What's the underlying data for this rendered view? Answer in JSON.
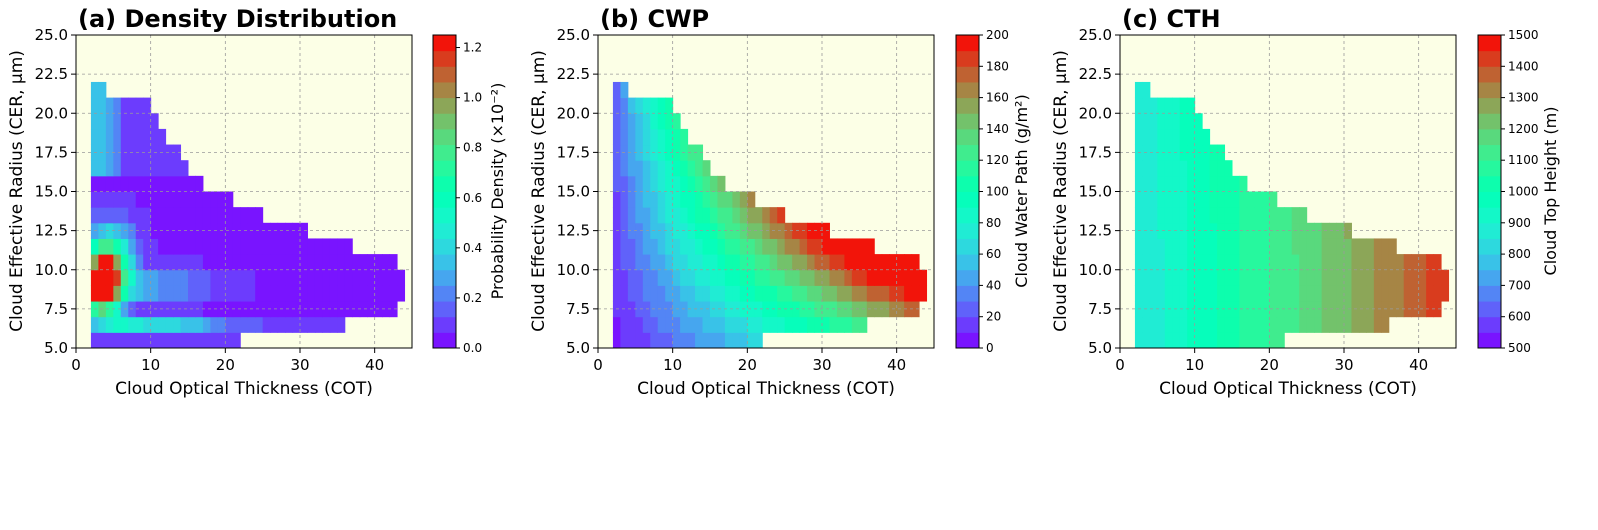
{
  "chart_data": [
    {
      "type": "heatmap",
      "title": "(a) Density Distribution",
      "xlabel": "Cloud Optical Thickness (COT)",
      "ylabel": "Cloud Effective Radius (CER, μm)",
      "xlim": [
        0,
        45
      ],
      "ylim": [
        5,
        25
      ],
      "xticks": [
        0,
        10,
        20,
        30,
        40
      ],
      "yticks": [
        "5.0",
        "7.5",
        "10.0",
        "12.5",
        "15.0",
        "17.5",
        "20.0",
        "22.5",
        "25.0"
      ],
      "colorbar": {
        "label": "Probability Density (×10⁻²)",
        "range": [
          0,
          1.25
        ],
        "levels": 20,
        "ticks": [
          "0.0",
          "0.2",
          "0.4",
          "0.6",
          "0.8",
          "1.0",
          "1.2"
        ]
      },
      "grid": true,
      "background": "#fcffe6",
      "x_bin": 1,
      "y_bin": 1,
      "kind": "density"
    },
    {
      "type": "heatmap",
      "title": "(b) CWP",
      "xlabel": "Cloud Optical Thickness (COT)",
      "ylabel": "Cloud Effective Radius (CER, μm)",
      "xlim": [
        0,
        45
      ],
      "ylim": [
        5,
        25
      ],
      "xticks": [
        0,
        10,
        20,
        30,
        40
      ],
      "yticks": [
        "5.0",
        "7.5",
        "10.0",
        "12.5",
        "15.0",
        "17.5",
        "20.0",
        "22.5",
        "25.0"
      ],
      "colorbar": {
        "label": "Cloud Water Path (g/m²)",
        "range": [
          0,
          200
        ],
        "levels": 20,
        "ticks": [
          "0",
          "20",
          "40",
          "60",
          "80",
          "100",
          "120",
          "140",
          "160",
          "180",
          "200"
        ]
      },
      "grid": true,
      "background": "#fcffe6",
      "x_bin": 1,
      "y_bin": 1,
      "kind": "cwp"
    },
    {
      "type": "heatmap",
      "title": "(c) CTH",
      "xlabel": "Cloud Optical Thickness (COT)",
      "ylabel": "Cloud Effective Radius (CER, μm)",
      "xlim": [
        0,
        45
      ],
      "ylim": [
        5,
        25
      ],
      "xticks": [
        0,
        10,
        20,
        30,
        40
      ],
      "yticks": [
        "5.0",
        "7.5",
        "10.0",
        "12.5",
        "15.0",
        "17.5",
        "20.0",
        "22.5",
        "25.0"
      ],
      "colorbar": {
        "label": "Cloud Top Height (m)",
        "range": [
          500,
          1500
        ],
        "levels": 20,
        "ticks": [
          "500",
          "600",
          "700",
          "800",
          "900",
          "1000",
          "1100",
          "1200",
          "1300",
          "1400",
          "1500"
        ]
      },
      "grid": true,
      "background": "#fcffe6",
      "x_bin": 1,
      "y_bin": 1,
      "kind": "cth"
    }
  ],
  "extent": {
    "x_min": 2,
    "rows": [
      {
        "y": 5,
        "x_max": 22
      },
      {
        "y": 6,
        "x_max": 36
      },
      {
        "y": 7,
        "x_max": 43
      },
      {
        "y": 8,
        "x_max": 44
      },
      {
        "y": 9,
        "x_max": 44
      },
      {
        "y": 10,
        "x_max": 43
      },
      {
        "y": 11,
        "x_max": 37
      },
      {
        "y": 12,
        "x_max": 31
      },
      {
        "y": 13,
        "x_max": 25
      },
      {
        "y": 14,
        "x_max": 21
      },
      {
        "y": 15,
        "x_max": 17
      },
      {
        "y": 16,
        "x_max": 15
      },
      {
        "y": 17,
        "x_max": 14
      },
      {
        "y": 18,
        "x_max": 12
      },
      {
        "y": 19,
        "x_max": 11
      },
      {
        "y": 20,
        "x_max": 10
      },
      {
        "y": 21,
        "x_max": 4
      }
    ]
  },
  "colors": {
    "background": "#fcffe6",
    "axis": "#000000",
    "grid": "#9a9a9a"
  }
}
